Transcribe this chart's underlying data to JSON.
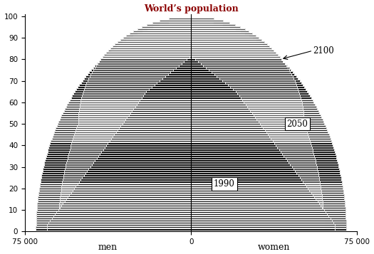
{
  "title": "World’s population",
  "title_color": "#8B0000",
  "xlabel_left": "men",
  "xlabel_right": "women",
  "xlim": [
    -75000,
    75000
  ],
  "ylim": [
    0,
    101
  ],
  "xticks": [
    -75000,
    0,
    75000
  ],
  "xtick_labels": [
    "75 000",
    "0",
    "75 000"
  ],
  "yticks": [
    0,
    10,
    20,
    30,
    40,
    50,
    60,
    70,
    80,
    90,
    100
  ],
  "annotation_1990": "1990",
  "annotation_2050": "2050",
  "annotation_2100": "2100",
  "bar_facecolor": "#111111",
  "bar_edgecolor": "#000000",
  "background_color": "#ffffff",
  "figsize": [
    5.25,
    3.57
  ],
  "dpi": 100
}
